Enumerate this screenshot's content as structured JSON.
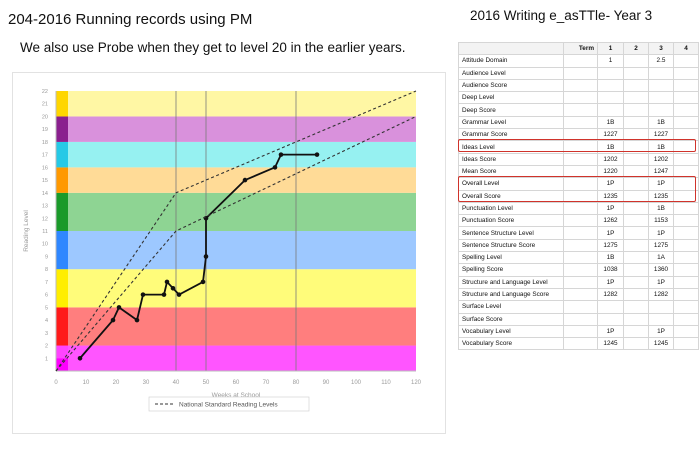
{
  "left_title": "204-2016 Running records using PM",
  "left_subtitle": "We also use Probe when they get to level 20 in the earlier years.",
  "right_title": "2016 Writing e_asTTle- Year 3",
  "chart_data": [
    {
      "type": "line",
      "title": "",
      "xlabel": "Weeks at School",
      "ylabel": "Reading Level",
      "xlim": [
        0,
        120
      ],
      "ylim": [
        0,
        22
      ],
      "x_ticks": [
        0,
        10,
        20,
        30,
        40,
        50,
        60,
        70,
        80,
        90,
        100,
        110,
        120
      ],
      "y_ticks": [
        1,
        2,
        3,
        4,
        5,
        6,
        7,
        8,
        9,
        10,
        11,
        12,
        13,
        14,
        15,
        16,
        17,
        18,
        19,
        20,
        21,
        22
      ],
      "vertical_gridlines_at": [
        40,
        50,
        80
      ],
      "legend": {
        "position": "bottom-center",
        "entries": [
          "National Standard Reading Levels"
        ]
      },
      "bands": [
        {
          "from": 0,
          "to": 2,
          "color": "#ff55ff"
        },
        {
          "from": 2,
          "to": 5,
          "color": "#ff7e7e"
        },
        {
          "from": 5,
          "to": 8,
          "color": "#fffc7a"
        },
        {
          "from": 8,
          "to": 11,
          "color": "#9dc8ff"
        },
        {
          "from": 11,
          "to": 14,
          "color": "#8ed493"
        },
        {
          "from": 14,
          "to": 16,
          "color": "#ffdb97"
        },
        {
          "from": 16,
          "to": 18,
          "color": "#96f1f1"
        },
        {
          "from": 18,
          "to": 20,
          "color": "#d991dc"
        },
        {
          "from": 20,
          "to": 22,
          "color": "#fff7a4"
        }
      ],
      "strip_colors": [
        {
          "from": 0,
          "to": 1,
          "color": "#ff00ff"
        },
        {
          "from": 1,
          "to": 2,
          "color": "#ff44ff"
        },
        {
          "from": 2,
          "to": 5,
          "color": "#ff1a1a"
        },
        {
          "from": 5,
          "to": 8,
          "color": "#ffee00"
        },
        {
          "from": 8,
          "to": 11,
          "color": "#2f87ff"
        },
        {
          "from": 11,
          "to": 14,
          "color": "#1a9a2a"
        },
        {
          "from": 14,
          "to": 16,
          "color": "#ff9900"
        },
        {
          "from": 16,
          "to": 18,
          "color": "#26c9e6"
        },
        {
          "from": 18,
          "to": 20,
          "color": "#8a1f8e"
        },
        {
          "from": 20,
          "to": 22,
          "color": "#ffd600"
        }
      ],
      "series": [
        {
          "style": "solid-markers",
          "color": "#111111",
          "x": [
            8,
            19,
            21,
            27,
            29,
            36,
            37,
            39,
            41,
            49,
            50,
            50,
            63,
            73,
            75,
            87
          ],
          "y": [
            1,
            4,
            5,
            4,
            6,
            6,
            7,
            6.5,
            6,
            7,
            9,
            12,
            15,
            16,
            17,
            17
          ]
        },
        {
          "name": "National Standard Reading Levels",
          "style": "dashed",
          "color": "#333333",
          "x": [
            0,
            40,
            120
          ],
          "y": [
            0,
            14,
            22
          ]
        },
        {
          "name": "National Standard Reading Levels",
          "style": "dashed",
          "color": "#333333",
          "x": [
            0,
            40,
            120
          ],
          "y": [
            0,
            11,
            20
          ]
        }
      ]
    },
    {
      "type": "table",
      "columns": [
        "Term",
        "1",
        "2",
        "3",
        "4"
      ],
      "rows": [
        [
          "Attitude Domain",
          "1",
          "",
          "2.5",
          ""
        ],
        [
          "Audience Level",
          "",
          "",
          "",
          ""
        ],
        [
          "Audience Score",
          "",
          "",
          "",
          ""
        ],
        [
          "Deep Level",
          "",
          "",
          "",
          ""
        ],
        [
          "Deep Score",
          "",
          "",
          "",
          ""
        ],
        [
          "Grammar Level",
          "1B",
          "",
          "1B",
          ""
        ],
        [
          "Grammar Score",
          "1227",
          "",
          "1227",
          ""
        ],
        [
          "Ideas Level",
          "1B",
          "",
          "1B",
          ""
        ],
        [
          "Ideas Score",
          "1202",
          "",
          "1202",
          ""
        ],
        [
          "Mean Score",
          "1220",
          "",
          "1247",
          ""
        ],
        [
          "Overall Level",
          "1P",
          "",
          "1P",
          ""
        ],
        [
          "Overall Score",
          "1235",
          "",
          "1235",
          ""
        ],
        [
          "Punctuation Level",
          "1P",
          "",
          "1B",
          ""
        ],
        [
          "Punctuation Score",
          "1262",
          "",
          "1153",
          ""
        ],
        [
          "Sentence Structure Level",
          "1P",
          "",
          "1P",
          ""
        ],
        [
          "Sentence Structure Score",
          "1275",
          "",
          "1275",
          ""
        ],
        [
          "Spelling Level",
          "1B",
          "",
          "1A",
          ""
        ],
        [
          "Spelling Score",
          "1038",
          "",
          "1360",
          ""
        ],
        [
          "Structure and Language Level",
          "1P",
          "",
          "1P",
          ""
        ],
        [
          "Structure and Language Score",
          "1282",
          "",
          "1282",
          ""
        ],
        [
          "Surface Level",
          "",
          "",
          "",
          ""
        ],
        [
          "Surface Score",
          "",
          "",
          "",
          ""
        ],
        [
          "Vocabulary Level",
          "1P",
          "",
          "1P",
          ""
        ],
        [
          "Vocabulary Score",
          "1245",
          "",
          "1245",
          ""
        ]
      ],
      "highlighted_rows": [
        "Ideas Level",
        "Overall Level",
        "Overall Score"
      ],
      "highlight_color": "#d0332b"
    }
  ]
}
